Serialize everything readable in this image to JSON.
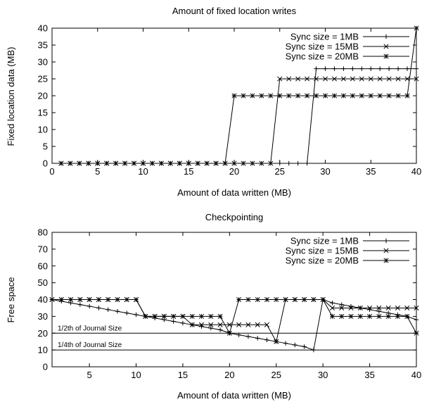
{
  "chart_data": [
    {
      "type": "line",
      "title": "Amount of fixed location writes",
      "xlabel": "Amount of data written (MB)",
      "ylabel": "Fixed location data (MB)",
      "xlim": [
        0,
        40
      ],
      "ylim": [
        0,
        40
      ],
      "xticks": [
        0,
        5,
        10,
        15,
        20,
        25,
        30,
        35,
        40
      ],
      "yticks": [
        0,
        5,
        10,
        15,
        20,
        25,
        30,
        35,
        40
      ],
      "grid": false,
      "legend_position": "top-right",
      "series": [
        {
          "name": "Sync size = 1MB",
          "marker": "plus",
          "points": [
            [
              1,
              0
            ],
            [
              2,
              0
            ],
            [
              3,
              0
            ],
            [
              4,
              0
            ],
            [
              5,
              0
            ],
            [
              6,
              0
            ],
            [
              7,
              0
            ],
            [
              8,
              0
            ],
            [
              9,
              0
            ],
            [
              10,
              0
            ],
            [
              11,
              0
            ],
            [
              12,
              0
            ],
            [
              13,
              0
            ],
            [
              14,
              0
            ],
            [
              15,
              0
            ],
            [
              16,
              0
            ],
            [
              17,
              0
            ],
            [
              18,
              0
            ],
            [
              19,
              0
            ],
            [
              20,
              0
            ],
            [
              21,
              0
            ],
            [
              22,
              0
            ],
            [
              23,
              0
            ],
            [
              24,
              0
            ],
            [
              25,
              0
            ],
            [
              26,
              0
            ],
            [
              27,
              0
            ],
            [
              28,
              0
            ],
            [
              29,
              28
            ],
            [
              30,
              28
            ],
            [
              31,
              28
            ],
            [
              32,
              28
            ],
            [
              33,
              28
            ],
            [
              34,
              28
            ],
            [
              35,
              28
            ],
            [
              36,
              28
            ],
            [
              37,
              28
            ],
            [
              38,
              28
            ],
            [
              39,
              28
            ],
            [
              40,
              28
            ]
          ]
        },
        {
          "name": "Sync size = 15MB",
          "marker": "x",
          "points": [
            [
              1,
              0
            ],
            [
              2,
              0
            ],
            [
              3,
              0
            ],
            [
              4,
              0
            ],
            [
              5,
              0
            ],
            [
              6,
              0
            ],
            [
              7,
              0
            ],
            [
              8,
              0
            ],
            [
              9,
              0
            ],
            [
              10,
              0
            ],
            [
              11,
              0
            ],
            [
              12,
              0
            ],
            [
              13,
              0
            ],
            [
              14,
              0
            ],
            [
              15,
              0
            ],
            [
              16,
              0
            ],
            [
              17,
              0
            ],
            [
              18,
              0
            ],
            [
              19,
              0
            ],
            [
              20,
              0
            ],
            [
              21,
              0
            ],
            [
              22,
              0
            ],
            [
              23,
              0
            ],
            [
              24,
              0
            ],
            [
              25,
              25
            ],
            [
              26,
              25
            ],
            [
              27,
              25
            ],
            [
              28,
              25
            ],
            [
              29,
              25
            ],
            [
              30,
              25
            ],
            [
              31,
              25
            ],
            [
              32,
              25
            ],
            [
              33,
              25
            ],
            [
              34,
              25
            ],
            [
              35,
              25
            ],
            [
              36,
              25
            ],
            [
              37,
              25
            ],
            [
              38,
              25
            ],
            [
              39,
              25
            ],
            [
              40,
              25
            ]
          ]
        },
        {
          "name": "Sync size = 20MB",
          "marker": "star",
          "points": [
            [
              1,
              0
            ],
            [
              2,
              0
            ],
            [
              3,
              0
            ],
            [
              4,
              0
            ],
            [
              5,
              0
            ],
            [
              6,
              0
            ],
            [
              7,
              0
            ],
            [
              8,
              0
            ],
            [
              9,
              0
            ],
            [
              10,
              0
            ],
            [
              11,
              0
            ],
            [
              12,
              0
            ],
            [
              13,
              0
            ],
            [
              14,
              0
            ],
            [
              15,
              0
            ],
            [
              16,
              0
            ],
            [
              17,
              0
            ],
            [
              18,
              0
            ],
            [
              19,
              0
            ],
            [
              20,
              20
            ],
            [
              21,
              20
            ],
            [
              22,
              20
            ],
            [
              23,
              20
            ],
            [
              24,
              20
            ],
            [
              25,
              20
            ],
            [
              26,
              20
            ],
            [
              27,
              20
            ],
            [
              28,
              20
            ],
            [
              29,
              20
            ],
            [
              30,
              20
            ],
            [
              31,
              20
            ],
            [
              32,
              20
            ],
            [
              33,
              20
            ],
            [
              34,
              20
            ],
            [
              35,
              20
            ],
            [
              36,
              20
            ],
            [
              37,
              20
            ],
            [
              38,
              20
            ],
            [
              39,
              20
            ],
            [
              40,
              40
            ]
          ]
        }
      ]
    },
    {
      "type": "line",
      "title": "Checkpointing",
      "xlabel": "Amount of data written (MB)",
      "ylabel": "Free space",
      "xlim": [
        1,
        40
      ],
      "ylim": [
        0,
        80
      ],
      "xticks": [
        5,
        10,
        15,
        20,
        25,
        30,
        35,
        40
      ],
      "yticks": [
        0,
        10,
        20,
        30,
        40,
        50,
        60,
        70,
        80
      ],
      "grid": false,
      "legend_position": "top-right",
      "reference_lines": [
        {
          "y": 20,
          "label": "1/2th of Journal Size"
        },
        {
          "y": 10,
          "label": "1/4th of Journal Size"
        }
      ],
      "series": [
        {
          "name": "Sync size = 1MB",
          "marker": "plus",
          "points": [
            [
              1,
              40
            ],
            [
              2,
              39
            ],
            [
              3,
              38
            ],
            [
              4,
              37
            ],
            [
              5,
              36
            ],
            [
              6,
              35
            ],
            [
              7,
              34
            ],
            [
              8,
              33
            ],
            [
              9,
              32
            ],
            [
              10,
              31
            ],
            [
              11,
              30
            ],
            [
              12,
              29
            ],
            [
              13,
              28
            ],
            [
              14,
              27
            ],
            [
              15,
              26
            ],
            [
              16,
              25
            ],
            [
              17,
              24
            ],
            [
              18,
              23
            ],
            [
              19,
              22
            ],
            [
              20,
              20
            ],
            [
              21,
              19
            ],
            [
              22,
              18
            ],
            [
              23,
              17
            ],
            [
              24,
              16
            ],
            [
              25,
              15
            ],
            [
              26,
              14
            ],
            [
              27,
              13
            ],
            [
              28,
              12
            ],
            [
              29,
              10
            ],
            [
              30,
              40
            ],
            [
              31,
              38
            ],
            [
              32,
              37
            ],
            [
              33,
              36
            ],
            [
              34,
              35
            ],
            [
              35,
              34
            ],
            [
              36,
              33
            ],
            [
              37,
              32
            ],
            [
              38,
              31
            ],
            [
              39,
              30
            ],
            [
              40,
              28
            ]
          ]
        },
        {
          "name": "Sync size = 15MB",
          "marker": "x",
          "points": [
            [
              1,
              40
            ],
            [
              2,
              40
            ],
            [
              3,
              40
            ],
            [
              4,
              40
            ],
            [
              5,
              40
            ],
            [
              6,
              40
            ],
            [
              7,
              40
            ],
            [
              8,
              40
            ],
            [
              9,
              40
            ],
            [
              10,
              40
            ],
            [
              11,
              30
            ],
            [
              12,
              30
            ],
            [
              13,
              30
            ],
            [
              14,
              30
            ],
            [
              15,
              30
            ],
            [
              16,
              25
            ],
            [
              17,
              25
            ],
            [
              18,
              25
            ],
            [
              19,
              25
            ],
            [
              20,
              25
            ],
            [
              21,
              25
            ],
            [
              22,
              25
            ],
            [
              23,
              25
            ],
            [
              24,
              25
            ],
            [
              25,
              15
            ],
            [
              26,
              40
            ],
            [
              27,
              40
            ],
            [
              28,
              40
            ],
            [
              29,
              40
            ],
            [
              30,
              40
            ],
            [
              31,
              35
            ],
            [
              32,
              35
            ],
            [
              33,
              35
            ],
            [
              34,
              35
            ],
            [
              35,
              35
            ],
            [
              36,
              35
            ],
            [
              37,
              35
            ],
            [
              38,
              35
            ],
            [
              39,
              35
            ],
            [
              40,
              35
            ]
          ]
        },
        {
          "name": "Sync size = 20MB",
          "marker": "star",
          "points": [
            [
              1,
              40
            ],
            [
              2,
              40
            ],
            [
              3,
              40
            ],
            [
              4,
              40
            ],
            [
              5,
              40
            ],
            [
              6,
              40
            ],
            [
              7,
              40
            ],
            [
              8,
              40
            ],
            [
              9,
              40
            ],
            [
              10,
              40
            ],
            [
              11,
              30
            ],
            [
              12,
              30
            ],
            [
              13,
              30
            ],
            [
              14,
              30
            ],
            [
              15,
              30
            ],
            [
              16,
              30
            ],
            [
              17,
              30
            ],
            [
              18,
              30
            ],
            [
              19,
              30
            ],
            [
              20,
              20
            ],
            [
              21,
              40
            ],
            [
              22,
              40
            ],
            [
              23,
              40
            ],
            [
              24,
              40
            ],
            [
              25,
              40
            ],
            [
              26,
              40
            ],
            [
              27,
              40
            ],
            [
              28,
              40
            ],
            [
              29,
              40
            ],
            [
              30,
              40
            ],
            [
              31,
              30
            ],
            [
              32,
              30
            ],
            [
              33,
              30
            ],
            [
              34,
              30
            ],
            [
              35,
              30
            ],
            [
              36,
              30
            ],
            [
              37,
              30
            ],
            [
              38,
              30
            ],
            [
              39,
              30
            ],
            [
              40,
              20
            ]
          ]
        }
      ]
    }
  ]
}
